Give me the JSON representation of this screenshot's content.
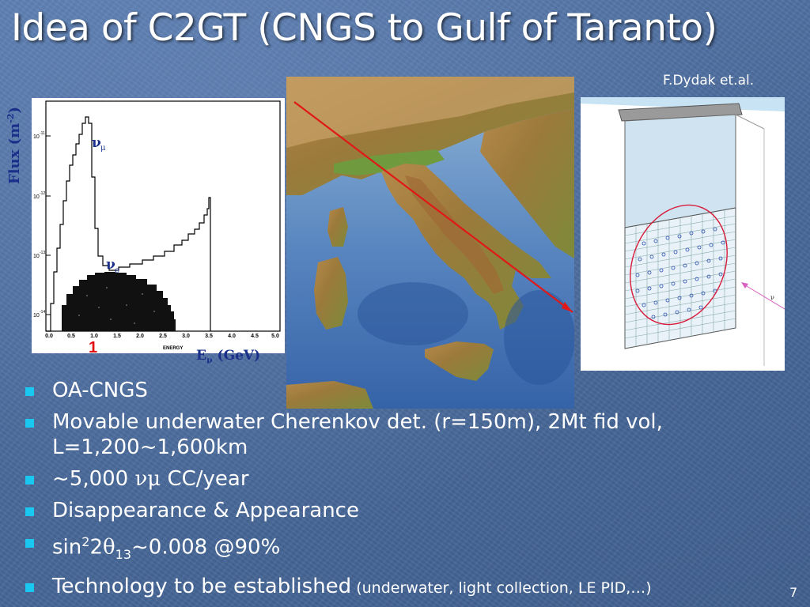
{
  "slide": {
    "title": "Idea of C2GT (CNGS to Gulf of Taranto)",
    "credit": "F.Dydak et.al.",
    "page_number": "7"
  },
  "plot": {
    "ylabel_main": "Flux (m",
    "ylabel_sup": "-2",
    "ylabel_close": ")",
    "xlabel_main": "E",
    "xlabel_sub": "ν",
    "xlabel_rest": " (GeV)",
    "energy_axis_label": "ENERGY",
    "marker_one": "1",
    "numu_label": "ν",
    "numu_sub": "μ",
    "nue_label": "ν",
    "nue_sub": "e",
    "x_ticks": [
      "0.0",
      "0.5",
      "1.0",
      "1.5",
      "2.0",
      "2.5",
      "3.0",
      "3.5",
      "4.0",
      "4.5",
      "5.0"
    ],
    "y_ticks": [
      "10",
      "10",
      "10",
      "10"
    ],
    "y_tick_exps": [
      "-11",
      "-12",
      "-13",
      "-14"
    ]
  },
  "bullets": [
    {
      "text": "OA-CNGS"
    },
    {
      "text": "Movable underwater Cherenkov det. (r=150m), 2Mt fid vol,",
      "line2": "L=1,200~1,600km"
    },
    {
      "pre": "~5,000 ",
      "greek": "νμ",
      "post": " CC/year"
    },
    {
      "text": "Disappearance & Appearance"
    },
    {
      "pre": "sin",
      "sup": "2",
      "mid": "2",
      "theta": "θ",
      "sub": "13",
      "post": "~0.008 @90%"
    },
    {
      "text": "Technology to be established",
      "small": " (underwater, light collection, LE PID,…)"
    }
  ],
  "colors": {
    "bullet": "#19c8f0",
    "label_blue": "#1a2f8a",
    "red": "#e01010"
  }
}
